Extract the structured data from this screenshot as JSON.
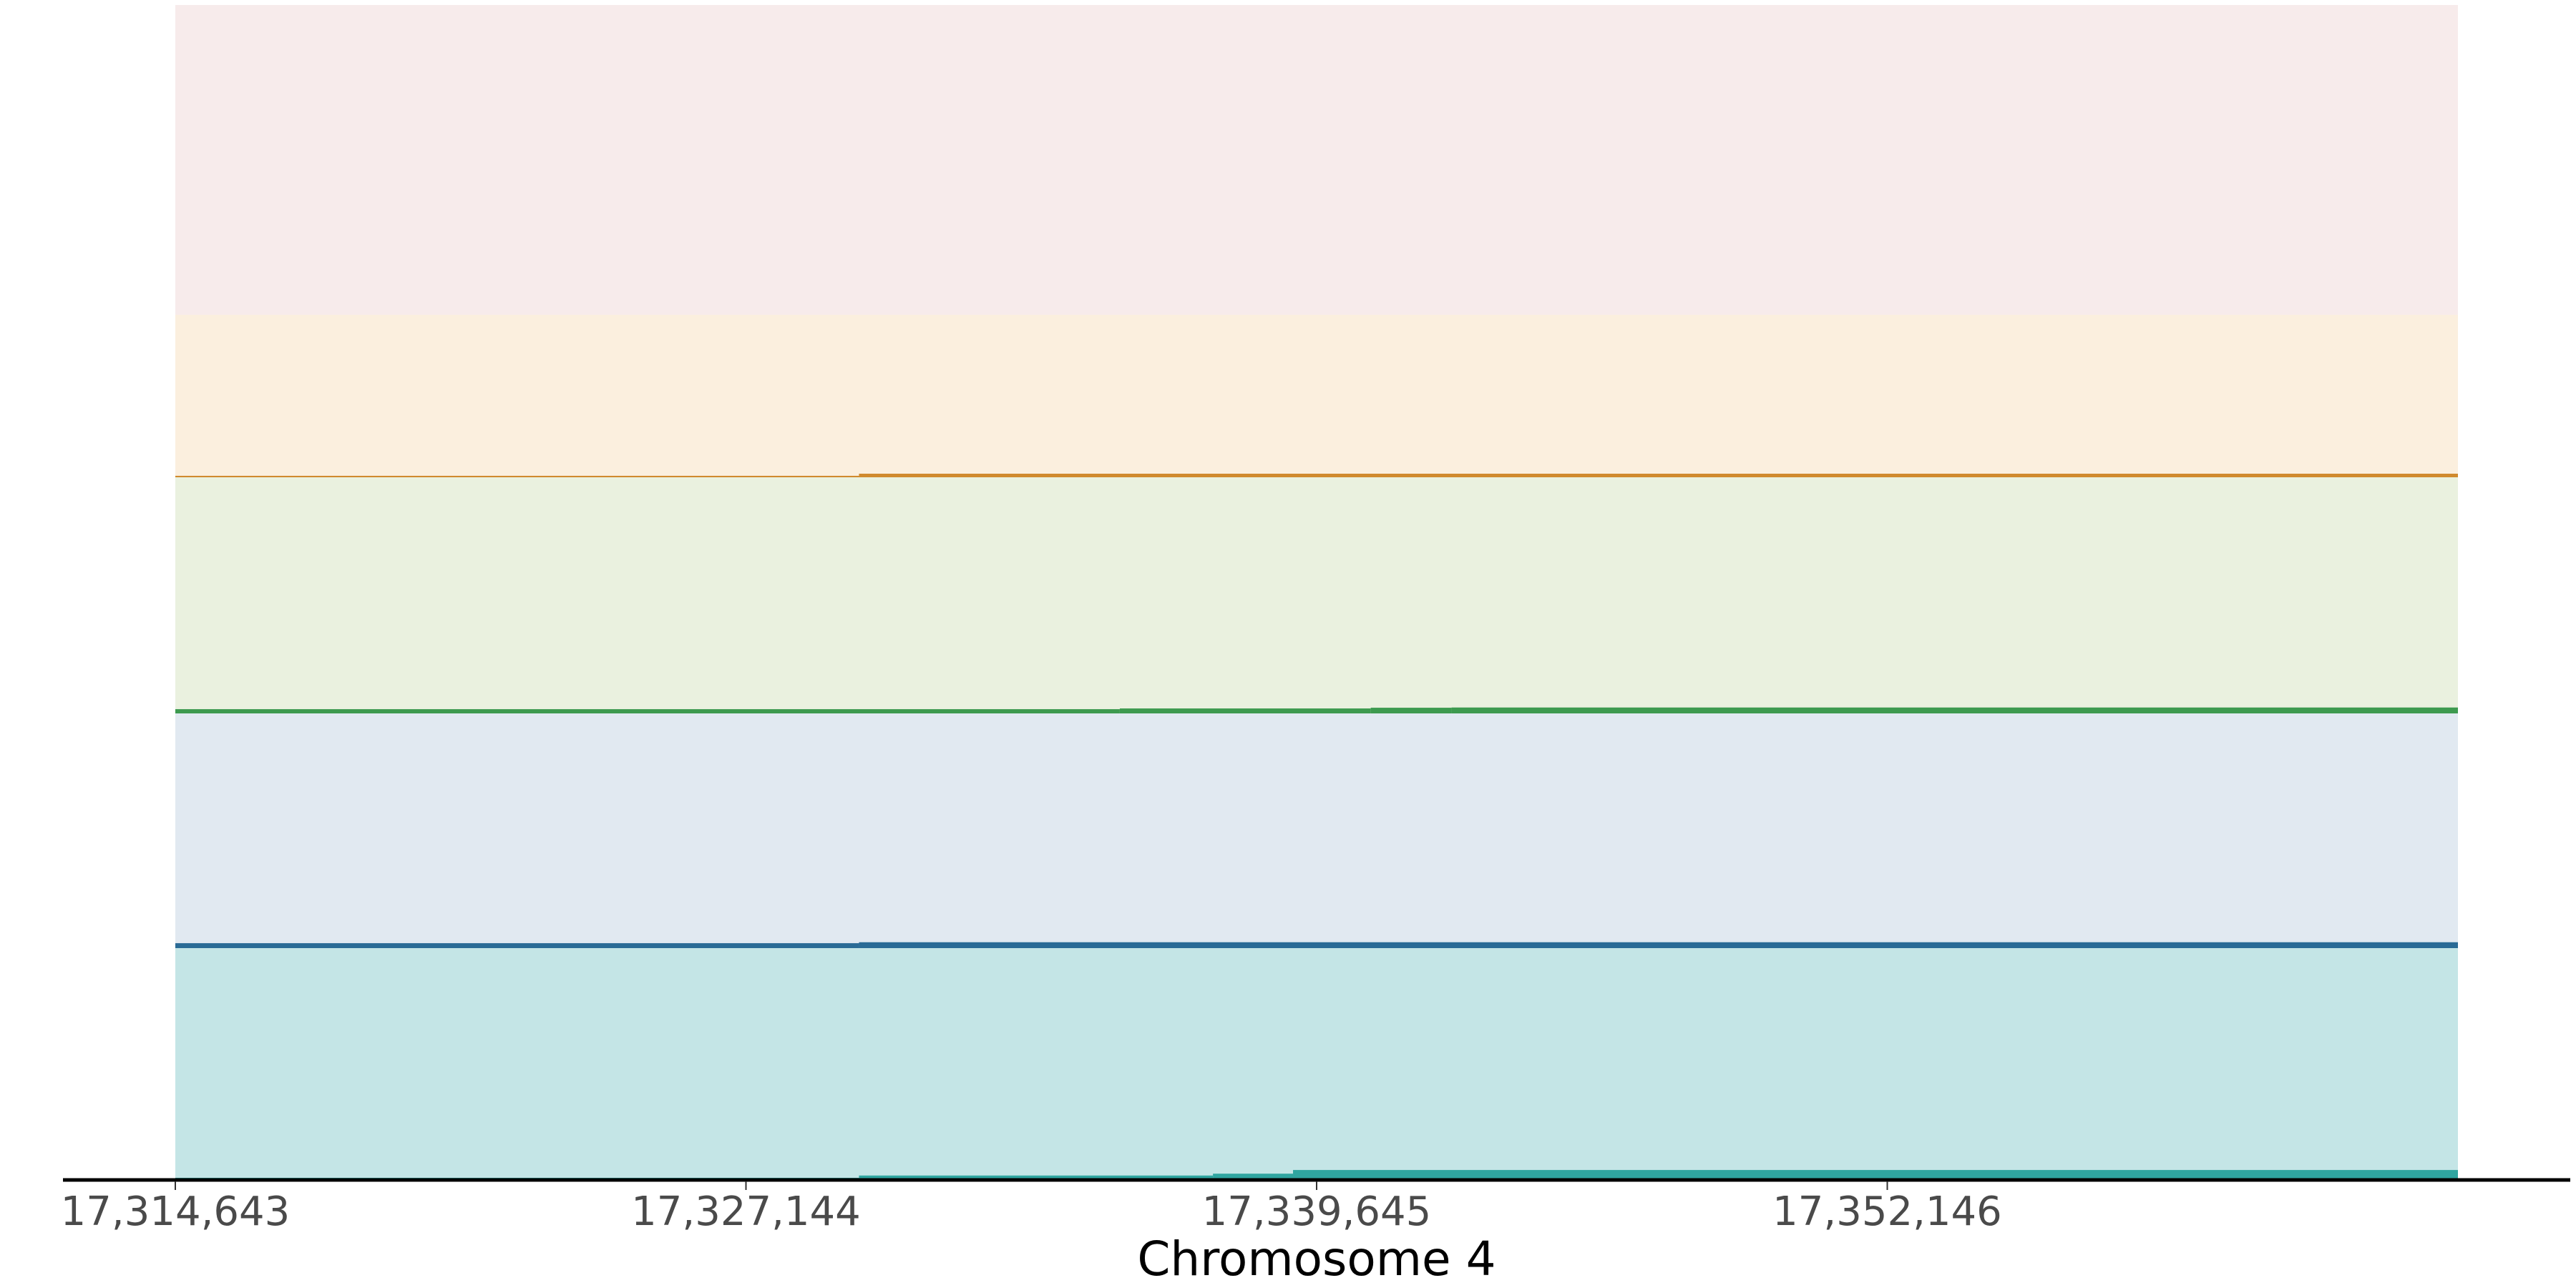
{
  "chart_data": {
    "type": "area",
    "xlabel": "Chromosome 4",
    "ylabel": "",
    "xlim": [
      17314643,
      17364647
    ],
    "x_ticks": [
      17314643,
      17327144,
      17339645,
      17352146
    ],
    "x_tick_labels": [
      "17,314,643",
      "17,327,144",
      "17,339,645",
      "17,352,146"
    ],
    "grid": false,
    "tracks": [
      {
        "band_color": "#f7ebeb",
        "fill_color": "#c98a8a",
        "steps": [
          {
            "start": 17314643,
            "end": 17364647,
            "value": 0
          }
        ]
      },
      {
        "band_color": "#fbefde",
        "fill_color": "#d08a2e",
        "steps": [
          {
            "start": 17314643,
            "end": 17329620,
            "value": 0.009
          },
          {
            "start": 17329620,
            "end": 17364647,
            "value": 0.022
          }
        ]
      },
      {
        "band_color": "#eaf1df",
        "fill_color": "#3d9a4f",
        "steps": [
          {
            "start": 17314643,
            "end": 17335333,
            "value": 0.018
          },
          {
            "start": 17335333,
            "end": 17340831,
            "value": 0.021
          },
          {
            "start": 17340831,
            "end": 17342601,
            "value": 0.024
          },
          {
            "start": 17342601,
            "end": 17364647,
            "value": 0.025
          }
        ]
      },
      {
        "band_color": "#e1e9f1",
        "fill_color": "#2a6b96",
        "steps": [
          {
            "start": 17314643,
            "end": 17329620,
            "value": 0.021
          },
          {
            "start": 17329620,
            "end": 17364647,
            "value": 0.025
          }
        ]
      },
      {
        "band_color": "#c4e5e6",
        "fill_color": "#2fa5a0",
        "steps": [
          {
            "start": 17314643,
            "end": 17329620,
            "value": 0.003
          },
          {
            "start": 17329620,
            "end": 17337374,
            "value": 0.013
          },
          {
            "start": 17337374,
            "end": 17339128,
            "value": 0.021
          },
          {
            "start": 17339128,
            "end": 17364647,
            "value": 0.037
          }
        ]
      }
    ]
  }
}
